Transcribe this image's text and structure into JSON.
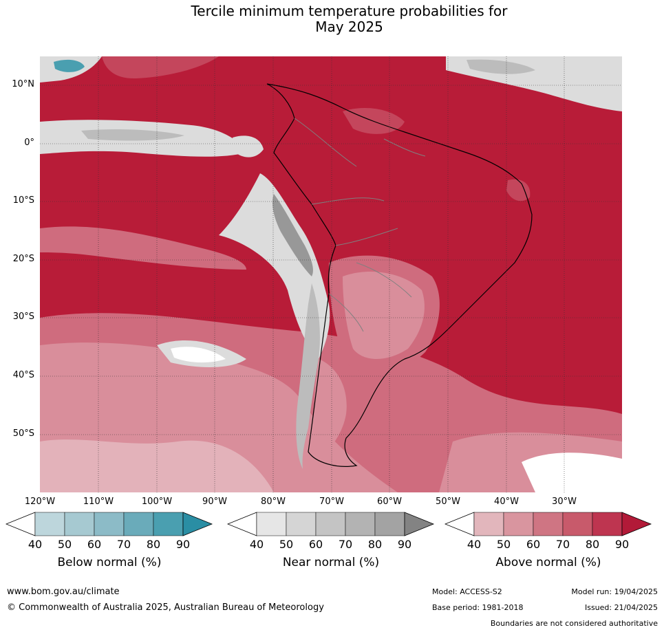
{
  "title_line1": "Tercile minimum temperature probabilities for",
  "title_line2": "May 2025",
  "lat_labels": [
    "10°N",
    "0°",
    "10°S",
    "20°S",
    "30°S",
    "40°S",
    "50°S"
  ],
  "lon_labels": [
    "120°W",
    "110°W",
    "100°W",
    "90°W",
    "80°W",
    "70°W",
    "60°W",
    "50°W",
    "40°W",
    "30°W"
  ],
  "colorbars": [
    {
      "title": "Below normal (%)",
      "ticks": [
        "40",
        "50",
        "60",
        "70",
        "80",
        "90"
      ],
      "colors": [
        "#bdd6dc",
        "#a6c9d1",
        "#8cbbc7",
        "#6aabba",
        "#4a9fb0",
        "#2a8ea4"
      ]
    },
    {
      "title": "Near normal (%)",
      "ticks": [
        "40",
        "50",
        "60",
        "70",
        "80",
        "90"
      ],
      "colors": [
        "#e6e6e6",
        "#d5d5d5",
        "#c4c4c4",
        "#b3b3b3",
        "#a3a3a3",
        "#838383"
      ]
    },
    {
      "title": "Above normal (%)",
      "ticks": [
        "40",
        "50",
        "60",
        "70",
        "80",
        "90"
      ],
      "colors": [
        "#e2b6bc",
        "#d9959f",
        "#cf7583",
        "#c85a6b",
        "#be3550",
        "#b21a38"
      ]
    }
  ],
  "map_colors": {
    "above_90": "#b81c38",
    "above_80": "#c4465c",
    "above_70": "#cf6c7e",
    "above_60": "#d98e9b",
    "above_50": "#e3b2ba",
    "near_50": "#dcdcdc",
    "near_70": "#bcbcbc",
    "near_90": "#989898",
    "below_80": "#4a9fb0",
    "white": "#ffffff",
    "coast": "#000000",
    "border": "#808080",
    "grid": "#333333"
  },
  "footer": {
    "website": "www.bom.gov.au/climate",
    "copyright": "© Commonwealth of Australia 2025, Australian Bureau of Meteorology",
    "model": "Model: ACCESS-S2",
    "base_period": "Base period: 1981-2018",
    "model_run": "Model run: 19/04/2025",
    "issued": "Issued: 21/04/2025",
    "disclaimer": "Boundaries are not considered authoritative"
  }
}
